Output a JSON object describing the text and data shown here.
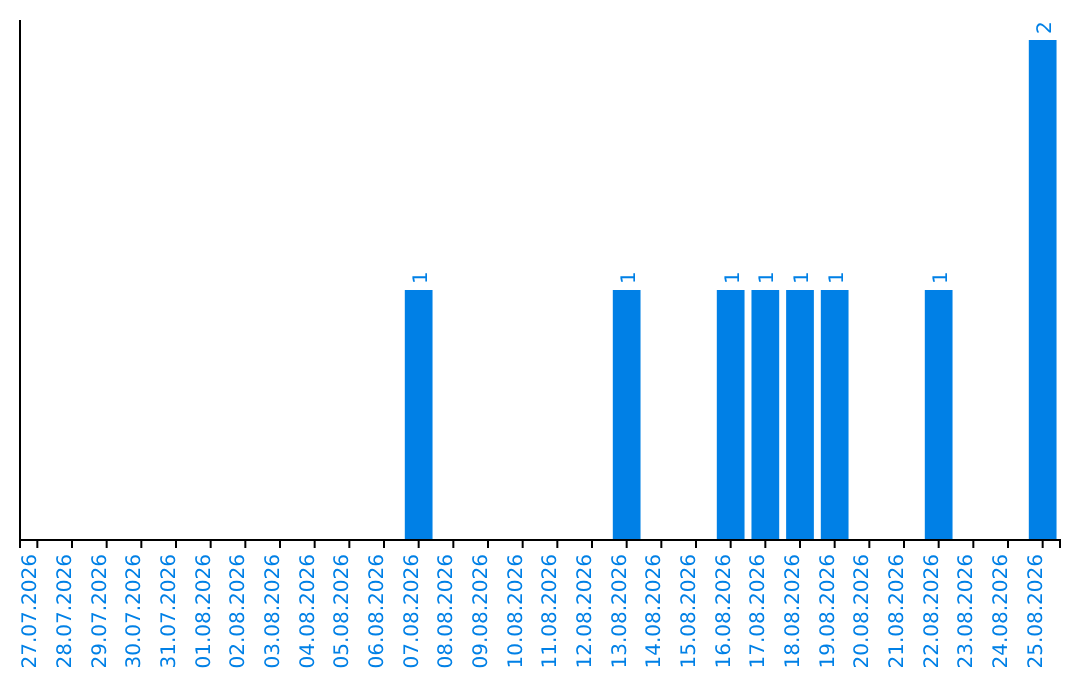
{
  "chart_data": {
    "type": "bar",
    "categories": [
      "27.07.2026",
      "28.07.2026",
      "29.07.2026",
      "30.07.2026",
      "31.07.2026",
      "01.08.2026",
      "02.08.2026",
      "03.08.2026",
      "04.08.2026",
      "05.08.2026",
      "06.08.2026",
      "07.08.2026",
      "08.08.2026",
      "09.08.2026",
      "10.08.2026",
      "11.08.2026",
      "12.08.2026",
      "13.08.2026",
      "14.08.2026",
      "15.08.2026",
      "16.08.2026",
      "17.08.2026",
      "18.08.2026",
      "19.08.2026",
      "20.08.2026",
      "21.08.2026",
      "22.08.2026",
      "23.08.2026",
      "24.08.2026",
      "25.08.2026"
    ],
    "values": [
      0,
      0,
      0,
      0,
      0,
      0,
      0,
      0,
      0,
      0,
      0,
      1,
      0,
      0,
      0,
      0,
      0,
      1,
      0,
      0,
      1,
      1,
      1,
      1,
      0,
      0,
      1,
      0,
      0,
      2
    ],
    "value_labels": [
      null,
      null,
      null,
      null,
      null,
      null,
      null,
      null,
      null,
      null,
      null,
      "1",
      null,
      null,
      null,
      null,
      null,
      "1",
      null,
      null,
      "1",
      "1",
      "1",
      "1",
      null,
      null,
      "1",
      null,
      null,
      "2"
    ],
    "color": "#0080e6",
    "grid": false,
    "tick_labels": "x"
  }
}
